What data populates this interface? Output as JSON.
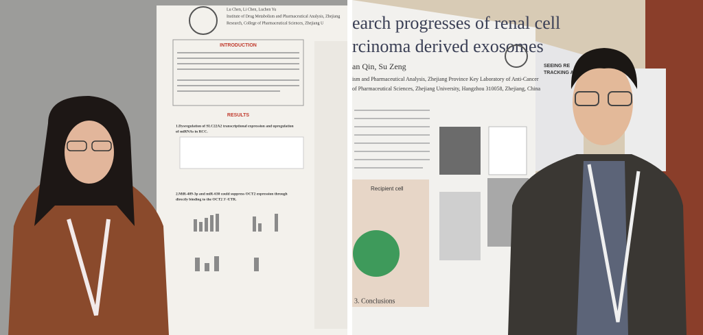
{
  "left_photo": {
    "poster": {
      "header_lines": [
        "Lu Chen, Li Chen, Luchen Yu",
        "Institute of Drug Metabolism and Pharmaceutical Analysis, Zhejiang",
        "Research, College of Pharmaceutical Sciences, Zhejiang U"
      ],
      "headings": [
        "INTRODUCTION",
        "RESULTS"
      ],
      "sections": [
        "1.Dysregulation of SLC22A2 transcriptional expression and upregulation",
        "of miRNAs in RCC.",
        "2.MiR-489-3p and miR-630 could suppress OCT2 expression through",
        "directly binding to the OCT2 3'-UTR."
      ]
    }
  },
  "right_photo": {
    "poster": {
      "title_lines": [
        "earch progresses of renal cell",
        "rcinoma derived exosomes"
      ],
      "authors": "an Qin, Su Zeng",
      "affiliation": [
        "ism and Pharmaceutical Analysis, Zhejiang Province Key Laboratory of Anti-Cancer",
        "of Pharmaceutical Sciences, Zhejiang University, Hangzhou 310058, Zhejiang, China"
      ],
      "figure_label": "Recipient cell",
      "section": "3. Conclusions"
    },
    "side_poster": [
      "SEEING RE",
      "TRACKING AN"
    ]
  }
}
